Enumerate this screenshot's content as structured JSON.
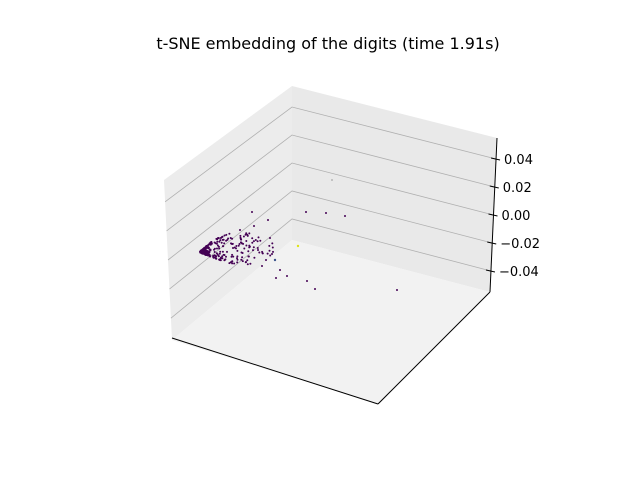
{
  "chart_data": {
    "type": "scatter",
    "projection": "3d",
    "title": "t-SNE embedding of the digits (time 1.91s)",
    "colormap": "viridis",
    "colors": {
      "pane": "#f2f2f2",
      "pane_side": "#ececec",
      "grid": "#b0b0b0",
      "axis": "#000000",
      "point_dark": "#440154",
      "point_mid": "#3b528b",
      "point_bright": "#dde318"
    },
    "zlim": [
      -0.055,
      0.055
    ],
    "z_ticks": [
      {
        "value": 0.04,
        "label": "0.04"
      },
      {
        "value": 0.02,
        "label": "0.02"
      },
      {
        "value": 0.0,
        "label": "0.00"
      },
      {
        "value": -0.02,
        "label": "−0.02"
      },
      {
        "value": -0.04,
        "label": "−0.04"
      }
    ],
    "x_ticks": [],
    "y_ticks": [],
    "grid": true,
    "legend": "none",
    "n_points_approx": 300
  }
}
